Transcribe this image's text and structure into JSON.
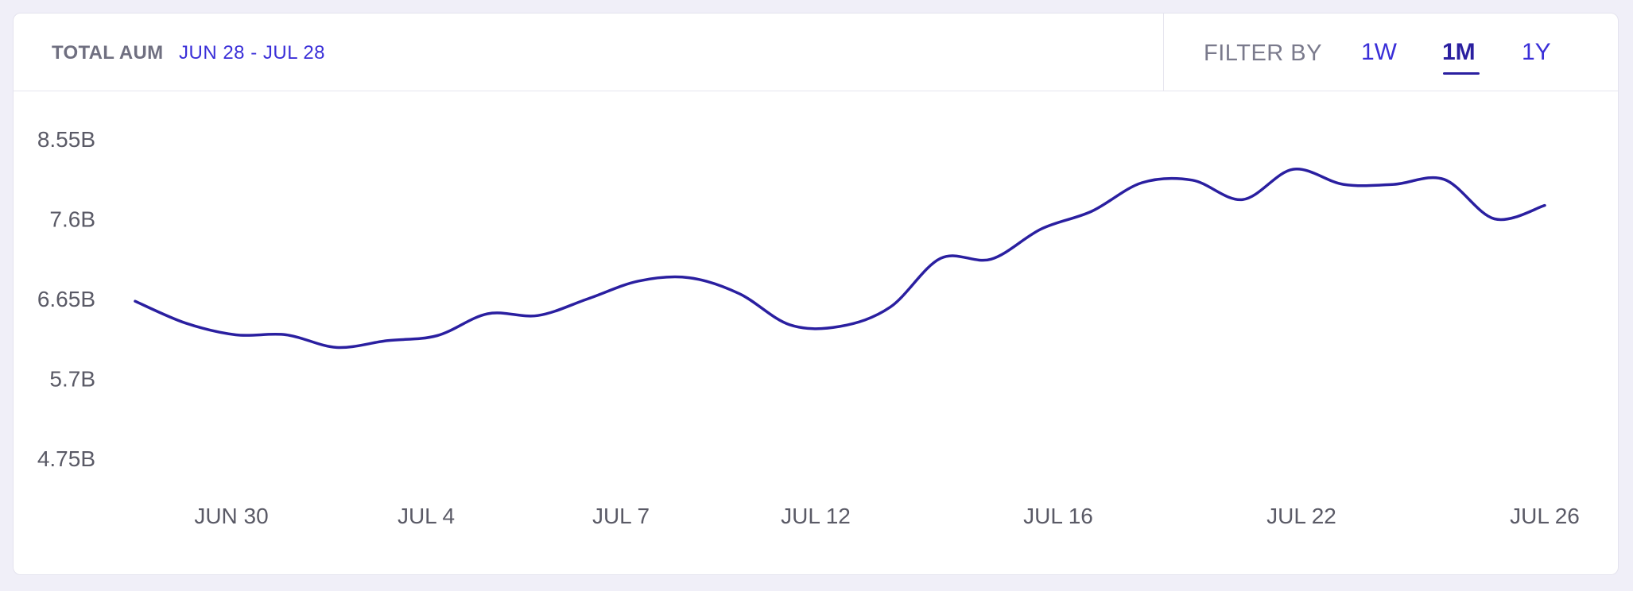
{
  "header": {
    "title": "TOTAL AUM",
    "date_range": "JUN 28 - JUL 28"
  },
  "filter": {
    "label": "FILTER BY",
    "options": [
      "1W",
      "1M",
      "1Y"
    ],
    "selected": "1M"
  },
  "colors": {
    "line": "#2a1fa0",
    "accent": "#3a2fd8",
    "background": "#f0eff8"
  },
  "chart_data": {
    "type": "line",
    "y_tick_labels": [
      "8.55B",
      "7.6B",
      "6.65B",
      "5.7B",
      "4.75B"
    ],
    "y_tick_values": [
      8.55,
      7.6,
      6.65,
      5.7,
      4.75
    ],
    "ylim": [
      4.75,
      8.55
    ],
    "x_tick_labels": [
      "JUN 30",
      "JUL 4",
      "JUL 7",
      "JUL 12",
      "JUL 16",
      "JUL 22",
      "JUL 26"
    ],
    "series": [
      {
        "values": [
          6.62,
          6.36,
          6.22,
          6.22,
          6.07,
          6.15,
          6.21,
          6.47,
          6.45,
          6.65,
          6.86,
          6.9,
          6.71,
          6.34,
          6.32,
          6.55,
          7.13,
          7.12,
          7.48,
          7.69,
          8.03,
          8.06,
          7.83,
          8.19,
          8.01,
          8.01,
          8.07,
          7.6,
          7.76
        ]
      }
    ]
  }
}
